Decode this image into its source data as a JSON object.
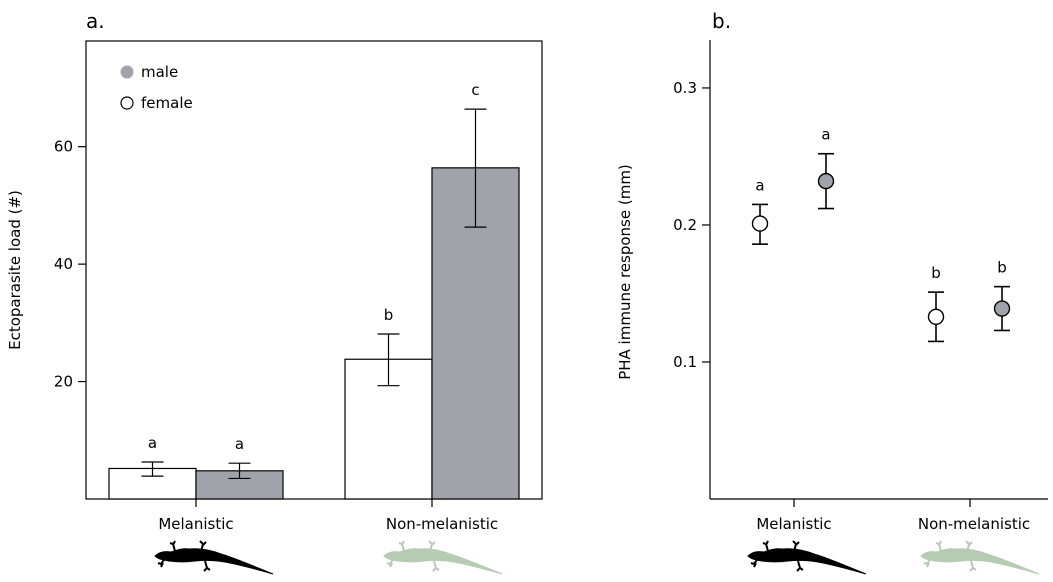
{
  "figure": {
    "panel_a_label": "a.",
    "panel_b_label": "b."
  },
  "legend": {
    "male": "male",
    "female": "female"
  },
  "colors": {
    "male": "#a0a4aa",
    "female": "#ffffff",
    "melanistic_lizard": "#000000",
    "non_melanistic_lizard": "#b5ccb2"
  },
  "chart_data": [
    {
      "type": "bar",
      "panel": "a.",
      "ylabel": "Ectoparasite load (#)",
      "xlabel": "",
      "categories": [
        "Melanistic",
        "Non-melanistic"
      ],
      "ylim": [
        0,
        78
      ],
      "yticks": [
        20,
        40,
        60
      ],
      "legend_position": "top-left",
      "series": [
        {
          "name": "female",
          "values": [
            5.2,
            23.8
          ],
          "err_low": [
            3.9,
            19.3
          ],
          "err_high": [
            6.3,
            28.1
          ],
          "letters": [
            "a",
            "b"
          ]
        },
        {
          "name": "male",
          "values": [
            4.8,
            56.4
          ],
          "err_low": [
            3.5,
            46.3
          ],
          "err_high": [
            6.1,
            66.4
          ],
          "letters": [
            "a",
            "c"
          ]
        }
      ]
    },
    {
      "type": "scatter",
      "panel": "b.",
      "ylabel": "PHA immune response (mm)",
      "xlabel": "",
      "categories": [
        "Melanistic",
        "Non-melanistic"
      ],
      "ylim": [
        0.0,
        0.335
      ],
      "yticks": [
        0.1,
        0.2,
        0.3
      ],
      "series": [
        {
          "name": "female",
          "values": [
            0.201,
            0.133
          ],
          "err_low": [
            0.186,
            0.115
          ],
          "err_high": [
            0.215,
            0.151
          ],
          "letters": [
            "a",
            "b"
          ]
        },
        {
          "name": "male",
          "values": [
            0.232,
            0.139
          ],
          "err_low": [
            0.212,
            0.123
          ],
          "err_high": [
            0.252,
            0.155
          ],
          "letters": [
            "a",
            "b"
          ]
        }
      ]
    }
  ]
}
